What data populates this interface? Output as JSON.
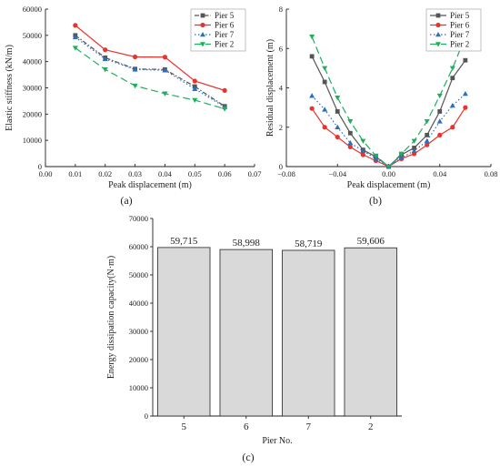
{
  "chart_data": [
    {
      "type": "line",
      "panel_label": "(a)",
      "title": "",
      "xlabel": "Peak displacement (m)",
      "ylabel": "Elastic stiffness (kN/m)",
      "xlim": [
        0.0,
        0.07
      ],
      "ylim": [
        0,
        60000
      ],
      "x_ticks": [
        "0.00",
        "0.01",
        "0.02",
        "0.03",
        "0.04",
        "0.05",
        "0.06",
        "0.07"
      ],
      "y_ticks": [
        "0",
        "10000",
        "20000",
        "30000",
        "40000",
        "50000",
        "60000"
      ],
      "legend_position": "top-right",
      "x": [
        0.01,
        0.02,
        0.03,
        0.04,
        0.05,
        0.06
      ],
      "series": [
        {
          "name": "Pier 5",
          "color": "#555555",
          "marker": "square",
          "dash": "5,2,1.5,2",
          "values": [
            50000,
            41500,
            37200,
            37000,
            30500,
            23000
          ]
        },
        {
          "name": "Pier 6",
          "color": "#e8332f",
          "marker": "circle",
          "dash": "",
          "values": [
            53800,
            44500,
            41800,
            41700,
            32600,
            29000
          ]
        },
        {
          "name": "Pier 7",
          "color": "#2a6fc0",
          "marker": "triangle-up",
          "dash": "1.5,2.5",
          "values": [
            49300,
            41000,
            37000,
            36700,
            29600,
            22700
          ]
        },
        {
          "name": "Pier 2",
          "color": "#1fae5e",
          "marker": "triangle-down",
          "dash": "8,4",
          "values": [
            45200,
            37000,
            30800,
            27800,
            25300,
            22000
          ]
        }
      ]
    },
    {
      "type": "line",
      "panel_label": "(b)",
      "title": "",
      "xlabel": "Peak displacement (m)",
      "ylabel": "Residual displacement (m)",
      "xlim": [
        -0.08,
        0.08
      ],
      "ylim": [
        0,
        8
      ],
      "x_ticks": [
        "−0.08",
        "−0.04",
        "0.00",
        "0.04",
        "0.08"
      ],
      "y_ticks": [
        "0",
        "2",
        "4",
        "6",
        "8"
      ],
      "legend_position": "top-right",
      "x": [
        -0.06,
        -0.05,
        -0.04,
        -0.03,
        -0.02,
        -0.01,
        0.0,
        0.01,
        0.02,
        0.03,
        0.04,
        0.05,
        0.06
      ],
      "series": [
        {
          "name": "Pier 5",
          "color": "#555555",
          "marker": "square",
          "dash": "",
          "values": [
            5.6,
            4.3,
            2.8,
            1.7,
            0.85,
            0.5,
            0.0,
            0.6,
            0.95,
            1.6,
            2.8,
            4.5,
            5.4
          ]
        },
        {
          "name": "Pier 6",
          "color": "#e8332f",
          "marker": "circle",
          "dash": "",
          "values": [
            2.95,
            2.0,
            1.5,
            1.0,
            0.6,
            0.3,
            0.0,
            0.4,
            0.65,
            1.1,
            1.6,
            2.0,
            3.0
          ]
        },
        {
          "name": "Pier 7",
          "color": "#2a6fc0",
          "marker": "triangle-up",
          "dash": "1.5,2.5",
          "values": [
            3.6,
            2.9,
            2.0,
            1.2,
            0.8,
            0.4,
            0.0,
            0.45,
            0.8,
            1.3,
            2.3,
            3.1,
            3.7
          ]
        },
        {
          "name": "Pier 2",
          "color": "#1fae5e",
          "marker": "triangle-down",
          "dash": "8,4",
          "values": [
            6.6,
            5.0,
            3.5,
            2.3,
            1.3,
            0.55,
            0.0,
            0.65,
            1.3,
            2.3,
            3.6,
            5.0,
            6.6
          ]
        }
      ]
    },
    {
      "type": "bar",
      "panel_label": "(c)",
      "title": "",
      "xlabel": "Pier No.",
      "ylabel": "Energy dissipation capacity(N·m)",
      "ylim": [
        0,
        70000
      ],
      "y_ticks": [
        "0",
        "10000",
        "20000",
        "30000",
        "40000",
        "50000",
        "60000",
        "70000"
      ],
      "categories": [
        "5",
        "6",
        "7",
        "2"
      ],
      "values": [
        59715,
        58998,
        58719,
        59606
      ],
      "data_labels": [
        "59,715",
        "58,998",
        "58,719",
        "59,606"
      ],
      "bar_color": "#d9d9d9",
      "edge_color": "#222222"
    }
  ]
}
